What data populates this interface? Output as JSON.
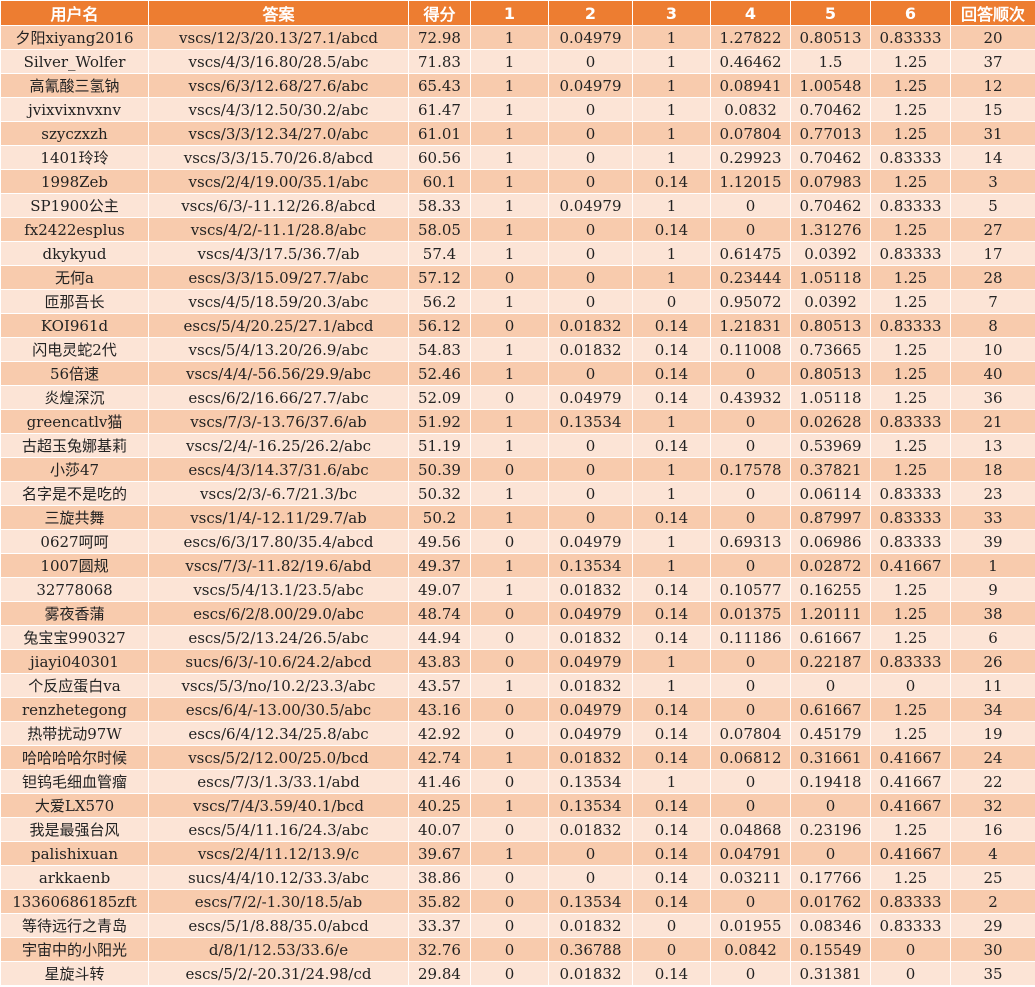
{
  "table": {
    "headers": [
      "用户名",
      "答案",
      "得分",
      "1",
      "2",
      "3",
      "4",
      "5",
      "6",
      "回答顺次"
    ],
    "rows": [
      [
        "夕阳xiyang2016",
        "vscs/12/3/20.13/27.1/abcd",
        "72.98",
        "1",
        "0.04979",
        "1",
        "1.27822",
        "0.80513",
        "0.83333",
        "20"
      ],
      [
        "Silver_Wolfer",
        "vscs/4/3/16.80/28.5/abc",
        "71.83",
        "1",
        "0",
        "1",
        "0.46462",
        "1.5",
        "1.25",
        "37"
      ],
      [
        "高氰酸三氢钠",
        "vscs/6/3/12.68/27.6/abc",
        "65.43",
        "1",
        "0.04979",
        "1",
        "0.08941",
        "1.00548",
        "1.25",
        "12"
      ],
      [
        "jvixvixnvxnv",
        "vscs/4/3/12.50/30.2/abc",
        "61.47",
        "1",
        "0",
        "1",
        "0.0832",
        "0.70462",
        "1.25",
        "15"
      ],
      [
        "szyczxzh",
        "vscs/3/3/12.34/27.0/abc",
        "61.01",
        "1",
        "0",
        "1",
        "0.07804",
        "0.77013",
        "1.25",
        "31"
      ],
      [
        "1401玲玲",
        "vscs/3/3/15.70/26.8/abcd",
        "60.56",
        "1",
        "0",
        "1",
        "0.29923",
        "0.70462",
        "0.83333",
        "14"
      ],
      [
        "1998Zeb",
        "vscs/2/4/19.00/35.1/abc",
        "60.1",
        "1",
        "0",
        "0.14",
        "1.12015",
        "0.07983",
        "1.25",
        "3"
      ],
      [
        "SP1900公主",
        "vscs/6/3/-11.12/26.8/abcd",
        "58.33",
        "1",
        "0.04979",
        "1",
        "0",
        "0.70462",
        "0.83333",
        "5"
      ],
      [
        "fx2422esplus",
        "vscs/4/2/-11.1/28.8/abc",
        "58.05",
        "1",
        "0",
        "0.14",
        "0",
        "1.31276",
        "1.25",
        "27"
      ],
      [
        "dkykyud",
        "vscs/4/3/17.5/36.7/ab",
        "57.4",
        "1",
        "0",
        "1",
        "0.61475",
        "0.0392",
        "0.83333",
        "17"
      ],
      [
        "无何a",
        "escs/3/3/15.09/27.7/abc",
        "57.12",
        "0",
        "0",
        "1",
        "0.23444",
        "1.05118",
        "1.25",
        "28"
      ],
      [
        "匝那吾长",
        "vscs/4/5/18.59/20.3/abc",
        "56.2",
        "1",
        "0",
        "0",
        "0.95072",
        "0.0392",
        "1.25",
        "7"
      ],
      [
        "KOI961d",
        "escs/5/4/20.25/27.1/abcd",
        "56.12",
        "0",
        "0.01832",
        "0.14",
        "1.21831",
        "0.80513",
        "0.83333",
        "8"
      ],
      [
        "闪电灵蛇2代",
        "vscs/5/4/13.20/26.9/abc",
        "54.83",
        "1",
        "0.01832",
        "0.14",
        "0.11008",
        "0.73665",
        "1.25",
        "10"
      ],
      [
        "56倍速",
        "vscs/4/4/-56.56/29.9/abc",
        "52.46",
        "1",
        "0",
        "0.14",
        "0",
        "0.80513",
        "1.25",
        "40"
      ],
      [
        "炎煌深沉",
        "escs/6/2/16.66/27.7/abc",
        "52.09",
        "0",
        "0.04979",
        "0.14",
        "0.43932",
        "1.05118",
        "1.25",
        "36"
      ],
      [
        "greencatlv猫",
        "vscs/7/3/-13.76/37.6/ab",
        "51.92",
        "1",
        "0.13534",
        "1",
        "0",
        "0.02628",
        "0.83333",
        "21"
      ],
      [
        "古超玉兔娜基莉",
        "vscs/2/4/-16.25/26.2/abc",
        "51.19",
        "1",
        "0",
        "0.14",
        "0",
        "0.53969",
        "1.25",
        "13"
      ],
      [
        "小莎47",
        "escs/4/3/14.37/31.6/abc",
        "50.39",
        "0",
        "0",
        "1",
        "0.17578",
        "0.37821",
        "1.25",
        "18"
      ],
      [
        "名字是不是吃的",
        "vscs/2/3/-6.7/21.3/bc",
        "50.32",
        "1",
        "0",
        "1",
        "0",
        "0.06114",
        "0.83333",
        "23"
      ],
      [
        "三旋共舞",
        "vscs/1/4/-12.11/29.7/ab",
        "50.2",
        "1",
        "0",
        "0.14",
        "0",
        "0.87997",
        "0.83333",
        "33"
      ],
      [
        "0627呵呵",
        "escs/6/3/17.80/35.4/abcd",
        "49.56",
        "0",
        "0.04979",
        "1",
        "0.69313",
        "0.06986",
        "0.83333",
        "39"
      ],
      [
        "1007圆规",
        "vscs/7/3/-11.82/19.6/abd",
        "49.37",
        "1",
        "0.13534",
        "1",
        "0",
        "0.02872",
        "0.41667",
        "1"
      ],
      [
        "32778068",
        "vscs/5/4/13.1/23.5/abc",
        "49.07",
        "1",
        "0.01832",
        "0.14",
        "0.10577",
        "0.16255",
        "1.25",
        "9"
      ],
      [
        "雾夜香蒲",
        "escs/6/2/8.00/29.0/abc",
        "48.74",
        "0",
        "0.04979",
        "0.14",
        "0.01375",
        "1.20111",
        "1.25",
        "38"
      ],
      [
        "兔宝宝990327",
        "escs/5/2/13.24/26.5/abc",
        "44.94",
        "0",
        "0.01832",
        "0.14",
        "0.11186",
        "0.61667",
        "1.25",
        "6"
      ],
      [
        "jiayi040301",
        "sucs/6/3/-10.6/24.2/abcd",
        "43.83",
        "0",
        "0.04979",
        "1",
        "0",
        "0.22187",
        "0.83333",
        "26"
      ],
      [
        "个反应蛋白va",
        "vscs/5/3/no/10.2/23.3/abc",
        "43.57",
        "1",
        "0.01832",
        "1",
        "0",
        "0",
        "0",
        "11"
      ],
      [
        "renzhetegong",
        "escs/6/4/-13.00/30.5/abc",
        "43.16",
        "0",
        "0.04979",
        "0.14",
        "0",
        "0.61667",
        "1.25",
        "34"
      ],
      [
        "热带扰动97W",
        "escs/6/4/12.34/25.8/abc",
        "42.92",
        "0",
        "0.04979",
        "0.14",
        "0.07804",
        "0.45179",
        "1.25",
        "19"
      ],
      [
        "哈哈哈哈尔时候",
        "vscs/5/2/12.00/25.0/bcd",
        "42.74",
        "1",
        "0.01832",
        "0.14",
        "0.06812",
        "0.31661",
        "0.41667",
        "24"
      ],
      [
        "钽钨毛细血管瘤",
        "escs/7/3/1.3/33.1/abd",
        "41.46",
        "0",
        "0.13534",
        "1",
        "0",
        "0.19418",
        "0.41667",
        "22"
      ],
      [
        "大爱LX570",
        "vscs/7/4/3.59/40.1/bcd",
        "40.25",
        "1",
        "0.13534",
        "0.14",
        "0",
        "0",
        "0.41667",
        "32"
      ],
      [
        "我是最强台风",
        "escs/5/4/11.16/24.3/abc",
        "40.07",
        "0",
        "0.01832",
        "0.14",
        "0.04868",
        "0.23196",
        "1.25",
        "16"
      ],
      [
        "palishixuan",
        "vscs/2/4/11.12/13.9/c",
        "39.67",
        "1",
        "0",
        "0.14",
        "0.04791",
        "0",
        "0.41667",
        "4"
      ],
      [
        "arkkaenb",
        "sucs/4/4/10.12/33.3/abc",
        "38.86",
        "0",
        "0",
        "0.14",
        "0.03211",
        "0.17766",
        "1.25",
        "25"
      ],
      [
        "13360686185zft",
        "escs/7/2/-1.30/18.5/ab",
        "35.82",
        "0",
        "0.13534",
        "0.14",
        "0",
        "0.01762",
        "0.83333",
        "2"
      ],
      [
        "等待远行之青岛",
        "escs/5/1/8.88/35.0/abcd",
        "33.37",
        "0",
        "0.01832",
        "0",
        "0.01955",
        "0.08346",
        "0.83333",
        "29"
      ],
      [
        "宇宙中的小阳光",
        "d/8/1/12.53/33.6/e",
        "32.76",
        "0",
        "0.36788",
        "0",
        "0.0842",
        "0.15549",
        "0",
        "30"
      ],
      [
        "星旋斗转",
        "escs/5/2/-20.31/24.98/cd",
        "29.84",
        "0",
        "0.01832",
        "0.14",
        "0",
        "0.31381",
        "0",
        "35"
      ]
    ]
  },
  "colors": {
    "header_bg": "#ed7d31",
    "header_text": "#ffffff",
    "row_odd": "#f8cbad",
    "row_even": "#fce4d6"
  }
}
